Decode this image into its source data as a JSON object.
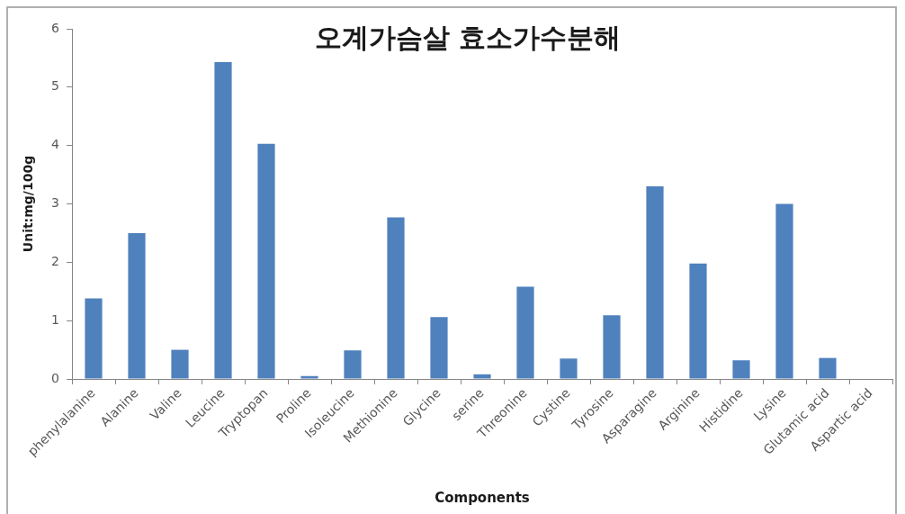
{
  "chart_data": {
    "type": "bar",
    "title": "오계가슴살 효소가수분해",
    "xlabel": "Components",
    "ylabel": "Unit:mg/100g",
    "categories": [
      "phenylalanine",
      "Alanine",
      "Valine",
      "Leucine",
      "Tryptopan",
      "Proline",
      "Isoleucine",
      "Methionine",
      "Glycine",
      "serine",
      "Threonine",
      "Cystine",
      "Tyrosine",
      "Asparagine",
      "Arginine",
      "Histidine",
      "Lysine",
      "Glutamic acid",
      "Aspartic acid"
    ],
    "values": [
      1.38,
      2.5,
      0.5,
      5.43,
      4.03,
      0.05,
      0.49,
      2.77,
      1.06,
      0.08,
      1.58,
      0.35,
      1.09,
      3.3,
      1.98,
      0.32,
      3.0,
      0.36,
      0
    ],
    "color": "#4f81bd",
    "ylim": [
      0,
      6
    ],
    "yticks": [
      0,
      1,
      2,
      3,
      4,
      5,
      6
    ]
  }
}
